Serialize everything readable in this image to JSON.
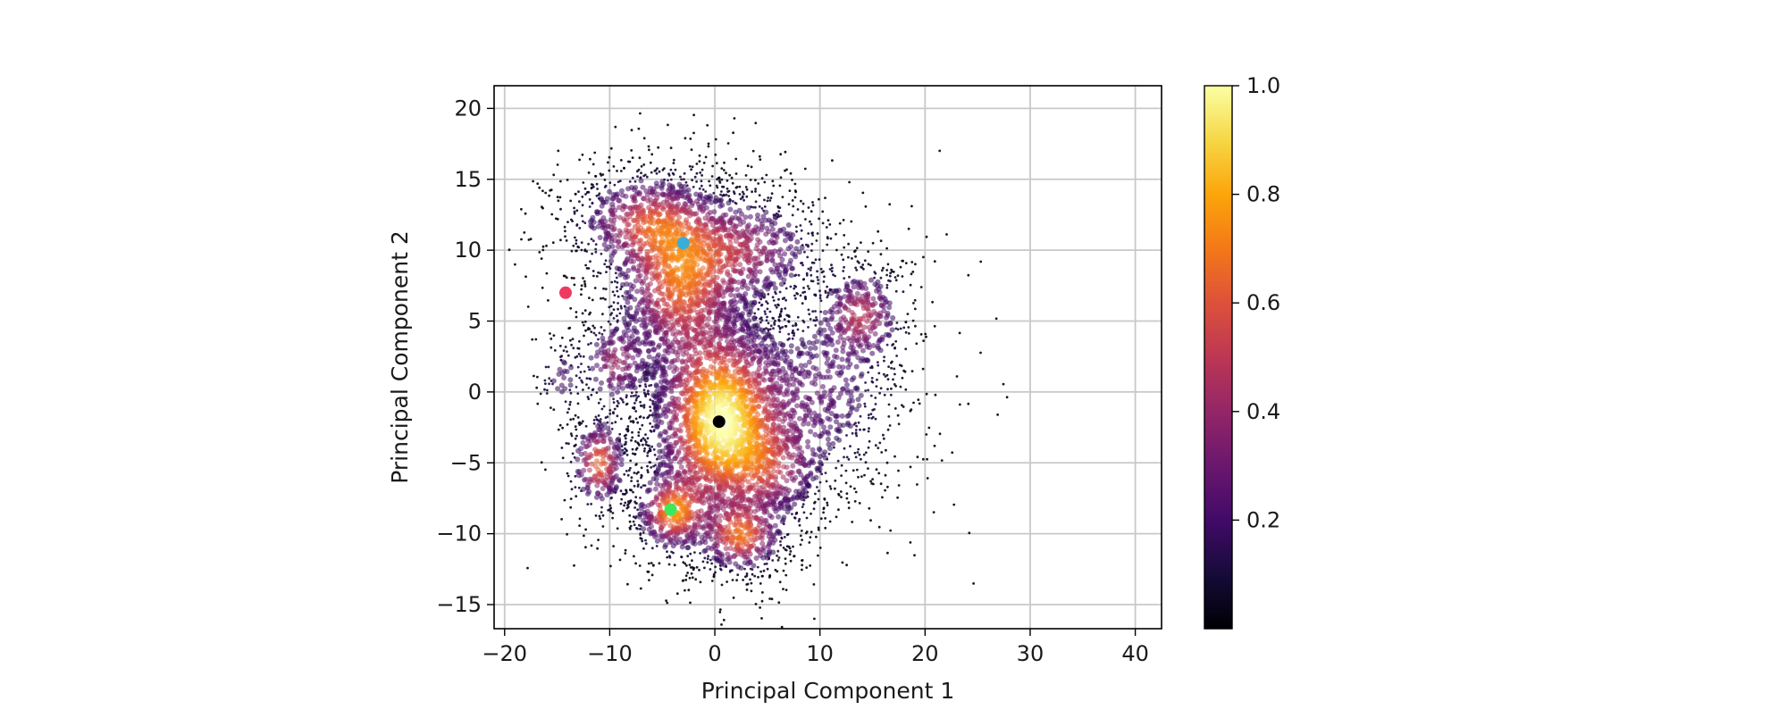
{
  "chart_data": {
    "type": "scatter",
    "title": "",
    "xlabel": "Principal Component 1",
    "ylabel": "Principal Component 2",
    "xlim": [
      -21,
      42.5
    ],
    "ylim": [
      -16.7,
      21.6
    ],
    "xticks": [
      -20,
      -10,
      0,
      10,
      20,
      30,
      40
    ],
    "yticks": [
      -15,
      -10,
      -5,
      0,
      5,
      10,
      15,
      20
    ],
    "grid": true,
    "colormap": "inferno",
    "colorbar": {
      "range": [
        0.0,
        1.0
      ],
      "ticks": [
        0.2,
        0.4,
        0.6,
        0.8,
        1.0
      ]
    },
    "density_clusters": [
      {
        "x": 0.5,
        "y": -2.0,
        "sx": 3.2,
        "sy": 3.6,
        "peak": 1.0
      },
      {
        "x": -3.5,
        "y": 7.5,
        "sx": 3.0,
        "sy": 3.0,
        "peak": 0.6
      },
      {
        "x": -6.5,
        "y": 12.0,
        "sx": 3.5,
        "sy": 1.8,
        "peak": 0.5
      },
      {
        "x": 2.5,
        "y": 10.0,
        "sx": 4.0,
        "sy": 2.0,
        "peak": 0.42
      },
      {
        "x": -11.0,
        "y": -5.0,
        "sx": 1.3,
        "sy": 1.6,
        "peak": 0.65
      },
      {
        "x": -4.0,
        "y": -8.5,
        "sx": 1.8,
        "sy": 1.4,
        "peak": 0.7
      },
      {
        "x": 2.5,
        "y": -10.2,
        "sx": 2.0,
        "sy": 1.3,
        "peak": 0.62
      },
      {
        "x": 14.0,
        "y": 5.5,
        "sx": 2.0,
        "sy": 1.7,
        "peak": 0.45
      },
      {
        "x": -9.5,
        "y": 2.0,
        "sx": 1.6,
        "sy": 1.6,
        "peak": 0.4
      },
      {
        "x": 5.5,
        "y": -5.5,
        "sx": 2.5,
        "sy": 2.0,
        "peak": 0.35
      },
      {
        "x": -14.5,
        "y": 1.0,
        "sx": 1.2,
        "sy": 1.4,
        "peak": 0.2
      },
      {
        "x": 10.0,
        "y": 0.0,
        "sx": 4.0,
        "sy": 3.5,
        "peak": 0.25
      }
    ],
    "highlight_points": [
      {
        "x": 0.4,
        "y": -2.1,
        "color": "#000000"
      },
      {
        "x": -3.0,
        "y": 10.5,
        "color": "#3aaed8"
      },
      {
        "x": -14.2,
        "y": 7.0,
        "color": "#f0395e"
      },
      {
        "x": -4.2,
        "y": -8.3,
        "color": "#3de85a"
      }
    ]
  }
}
